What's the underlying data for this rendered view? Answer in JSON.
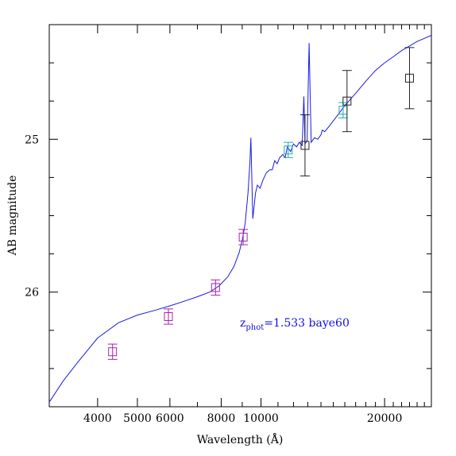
{
  "chart_data": {
    "type": "scatter",
    "title": "",
    "xlabel": "Wavelength (Å)",
    "ylabel": "AB magnitude",
    "x_scale": "log",
    "y_inverted": true,
    "xlim": [
      3050,
      26000
    ],
    "ylim": [
      26.75,
      24.25
    ],
    "grid": false,
    "x_ticks_major": [
      4000,
      5000,
      6000,
      8000,
      10000,
      20000
    ],
    "x_tick_labels": [
      "4000",
      "5000",
      "6000",
      "8000",
      "10000",
      "20000"
    ],
    "x_ticks_minor": [
      3000,
      7000,
      9000,
      11000,
      12000,
      13000,
      14000,
      15000,
      16000,
      17000,
      18000,
      19000,
      21000,
      22000,
      23000,
      24000,
      25000,
      26000
    ],
    "y_ticks_major": [
      25,
      26
    ],
    "y_tick_labels": [
      "25",
      "26"
    ],
    "y_ticks_minor": [
      24.25,
      24.5,
      24.75,
      25.25,
      25.5,
      25.75,
      26.25,
      26.5,
      26.75
    ],
    "annotation": {
      "prefix": "z",
      "subscript": "phot",
      "text": "=1.533 baye60",
      "color": "#1010dd"
    },
    "model_sed": {
      "color": "#1a1ae6",
      "points": [
        [
          3050,
          26.72
        ],
        [
          3300,
          26.58
        ],
        [
          3600,
          26.45
        ],
        [
          4000,
          26.3
        ],
        [
          4500,
          26.2
        ],
        [
          5000,
          26.15
        ],
        [
          5500,
          26.12
        ],
        [
          6000,
          26.09
        ],
        [
          6500,
          26.06
        ],
        [
          7000,
          26.03
        ],
        [
          7500,
          26.0
        ],
        [
          7900,
          25.96
        ],
        [
          8300,
          25.9
        ],
        [
          8600,
          25.83
        ],
        [
          8850,
          25.74
        ],
        [
          9000,
          25.66
        ],
        [
          9150,
          25.55
        ],
        [
          9300,
          25.35
        ],
        [
          9400,
          25.15
        ],
        [
          9450,
          24.99
        ],
        [
          9550,
          25.52
        ],
        [
          9700,
          25.35
        ],
        [
          9800,
          25.3
        ],
        [
          9950,
          25.32
        ],
        [
          10100,
          25.27
        ],
        [
          10300,
          25.22
        ],
        [
          10500,
          25.2
        ],
        [
          10650,
          25.2
        ],
        [
          10800,
          25.14
        ],
        [
          10950,
          25.16
        ],
        [
          11100,
          25.12
        ],
        [
          11300,
          25.1
        ],
        [
          11450,
          25.12
        ],
        [
          11600,
          25.05
        ],
        [
          11800,
          25.08
        ],
        [
          12000,
          25.03
        ],
        [
          12200,
          25.05
        ],
        [
          12400,
          25.02
        ],
        [
          12600,
          25.04
        ],
        [
          12720,
          24.72
        ],
        [
          12800,
          25.03
        ],
        [
          12950,
          25.01
        ],
        [
          13100,
          24.37
        ],
        [
          13250,
          25.02
        ],
        [
          13500,
          24.99
        ],
        [
          13750,
          25.0
        ],
        [
          14000,
          24.97
        ],
        [
          14100,
          24.94
        ],
        [
          14300,
          24.95
        ],
        [
          14600,
          24.92
        ],
        [
          15000,
          24.88
        ],
        [
          15500,
          24.83
        ],
        [
          16000,
          24.78
        ],
        [
          17000,
          24.7
        ],
        [
          18000,
          24.62
        ],
        [
          19000,
          24.55
        ],
        [
          20000,
          24.5
        ],
        [
          21000,
          24.46
        ],
        [
          22000,
          24.42
        ],
        [
          23000,
          24.39
        ],
        [
          24000,
          24.36
        ],
        [
          25000,
          24.34
        ],
        [
          26000,
          24.32
        ]
      ]
    },
    "series": [
      {
        "color": "#aa22aa",
        "points": [
          {
            "x": 4350,
            "y": 26.39,
            "err": 0.05
          },
          {
            "x": 5950,
            "y": 26.16,
            "err": 0.05
          },
          {
            "x": 7750,
            "y": 25.97,
            "err": 0.05
          },
          {
            "x": 9050,
            "y": 25.64,
            "err": 0.05
          }
        ]
      },
      {
        "color": "#22aaaa",
        "points": [
          {
            "x": 11650,
            "y": 25.07,
            "err": 0.05
          },
          {
            "x": 15850,
            "y": 24.81,
            "err": 0.05
          }
        ]
      },
      {
        "color": "#222222",
        "points": [
          {
            "x": 12800,
            "y": 25.04,
            "err": 0.2
          },
          {
            "x": 16200,
            "y": 24.75,
            "err": 0.2
          },
          {
            "x": 23000,
            "y": 24.6,
            "err": 0.2
          }
        ]
      }
    ]
  }
}
